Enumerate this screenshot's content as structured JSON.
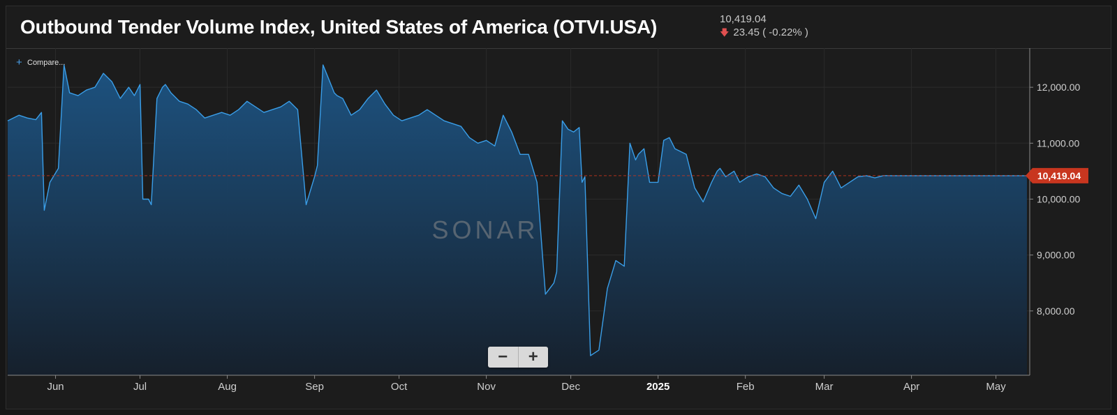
{
  "header": {
    "title": "Outbound Tender Volume Index, United States of America (OTVI.USA)",
    "last_value": "10,419.04",
    "change": "23.45 ( -0.22% )",
    "change_direction_icon": "down-arrow-icon"
  },
  "compare_label": "Compare...",
  "watermark": "SONAR",
  "zoom": {
    "minus_label": "−",
    "plus_label": "+"
  },
  "colors": {
    "line": "#3a9ee8",
    "accent_badge": "#c8361f",
    "fill_top": "#1d5585",
    "fill_bottom": "#16202c",
    "down": "#e05050"
  },
  "chart_data": {
    "type": "area",
    "series": [
      {
        "name": "",
        "x": [
          "2024-05-15",
          "2024-05-19",
          "2024-05-22",
          "2024-05-25",
          "2024-05-27",
          "2024-05-28",
          "2024-05-30",
          "2024-06-02",
          "2024-06-04",
          "2024-06-05",
          "2024-06-06",
          "2024-06-09",
          "2024-06-12",
          "2024-06-15",
          "2024-06-18",
          "2024-06-21",
          "2024-06-24",
          "2024-06-27",
          "2024-06-29",
          "2024-07-01",
          "2024-07-02",
          "2024-07-04",
          "2024-07-05",
          "2024-07-07",
          "2024-07-09",
          "2024-07-10",
          "2024-07-12",
          "2024-07-15",
          "2024-07-18",
          "2024-07-21",
          "2024-07-24",
          "2024-07-27",
          "2024-07-30",
          "2024-08-02",
          "2024-08-05",
          "2024-08-08",
          "2024-08-11",
          "2024-08-14",
          "2024-08-17",
          "2024-08-20",
          "2024-08-23",
          "2024-08-26",
          "2024-08-29",
          "2024-09-01",
          "2024-09-02",
          "2024-09-04",
          "2024-09-06",
          "2024-09-08",
          "2024-09-09",
          "2024-09-11",
          "2024-09-14",
          "2024-09-17",
          "2024-09-20",
          "2024-09-23",
          "2024-09-26",
          "2024-09-29",
          "2024-10-02",
          "2024-10-05",
          "2024-10-08",
          "2024-10-11",
          "2024-10-14",
          "2024-10-17",
          "2024-10-20",
          "2024-10-23",
          "2024-10-26",
          "2024-10-29",
          "2024-11-01",
          "2024-11-04",
          "2024-11-07",
          "2024-11-10",
          "2024-11-13",
          "2024-11-16",
          "2024-11-19",
          "2024-11-22",
          "2024-11-25",
          "2024-11-26",
          "2024-11-28",
          "2024-11-30",
          "2024-12-02",
          "2024-12-04",
          "2024-12-05",
          "2024-12-06",
          "2024-12-08",
          "2024-12-11",
          "2024-12-14",
          "2024-12-17",
          "2024-12-20",
          "2024-12-22",
          "2024-12-24",
          "2024-12-25",
          "2024-12-27",
          "2024-12-29",
          "2025-01-01",
          "2025-01-03",
          "2025-01-05",
          "2025-01-07",
          "2025-01-09",
          "2025-01-11",
          "2025-01-14",
          "2025-01-17",
          "2025-01-20",
          "2025-01-22",
          "2025-01-23",
          "2025-01-25",
          "2025-01-28",
          "2025-01-30",
          "2025-02-02",
          "2025-02-05",
          "2025-02-08",
          "2025-02-11",
          "2025-02-14",
          "2025-02-17",
          "2025-02-20",
          "2025-02-23",
          "2025-02-26",
          "2025-03-01",
          "2025-03-04",
          "2025-03-07",
          "2025-03-10",
          "2025-03-13",
          "2025-03-16",
          "2025-03-19",
          "2025-03-22",
          "2025-03-25",
          "2025-03-28",
          "2025-03-31",
          "2025-04-03",
          "2025-04-06",
          "2025-04-09",
          "2025-04-12",
          "2025-04-15",
          "2025-04-18",
          "2025-04-21",
          "2025-04-24",
          "2025-04-27",
          "2025-04-30",
          "2025-05-03",
          "2025-05-06",
          "2025-05-09",
          "2025-05-12"
        ],
        "values": [
          11400,
          11500,
          11450,
          11420,
          11550,
          9800,
          10300,
          10550,
          12400,
          12150,
          11900,
          11850,
          11950,
          12000,
          12250,
          12100,
          11800,
          12000,
          11850,
          12050,
          10000,
          10000,
          9900,
          11800,
          12000,
          12050,
          11900,
          11750,
          11700,
          11600,
          11450,
          11500,
          11550,
          11500,
          11600,
          11750,
          11650,
          11550,
          11600,
          11650,
          11750,
          11600,
          9900,
          10400,
          10600,
          12400,
          12150,
          11900,
          11850,
          11800,
          11500,
          11600,
          11800,
          11950,
          11700,
          11500,
          11400,
          11450,
          11500,
          11600,
          11500,
          11400,
          11350,
          11300,
          11100,
          11000,
          11050,
          10950,
          11500,
          11200,
          10800,
          10800,
          10300,
          8300,
          8500,
          8700,
          11400,
          11250,
          11200,
          11280,
          10300,
          10400,
          7200,
          7300,
          8400,
          8900,
          8800,
          11000,
          10700,
          10800,
          10900,
          10300,
          10300,
          11050,
          11100,
          10900,
          10850,
          10800,
          10200,
          9950,
          10300,
          10500,
          10550,
          10400,
          10500,
          10300,
          10400,
          10450,
          10400,
          10200,
          10100,
          10050,
          10250,
          10000,
          9650,
          10300,
          10500,
          10200,
          10300,
          10400,
          10419,
          10380,
          10420,
          10419,
          10419,
          10419,
          10419,
          10419,
          10419,
          10419,
          10419,
          10419,
          10419,
          10419,
          10419,
          10419,
          10419,
          10419,
          10419,
          10419
        ]
      }
    ],
    "x_tick_labels": [
      "Jun",
      "Jul",
      "Aug",
      "Sep",
      "Oct",
      "Nov",
      "Dec",
      "2025",
      "Feb",
      "Mar",
      "Apr",
      "May"
    ],
    "x_tick_dates": [
      "2024-06-01",
      "2024-07-01",
      "2024-08-01",
      "2024-09-01",
      "2024-10-01",
      "2024-11-01",
      "2024-12-01",
      "2025-01-01",
      "2025-02-01",
      "2025-03-01",
      "2025-04-01",
      "2025-05-01"
    ],
    "y_tick_labels": [
      "12,000.00",
      "11,000.00",
      "10,000.00",
      "9,000.00",
      "8,000.00"
    ],
    "y_ticks": [
      12000,
      11000,
      10000,
      9000,
      8000
    ],
    "ylim": [
      6850,
      12700
    ],
    "xlim": [
      "2024-05-15",
      "2025-05-13"
    ],
    "last_value": 10419.04,
    "last_value_label": "10,419.04",
    "grid": true,
    "y_axis_side": "right"
  }
}
